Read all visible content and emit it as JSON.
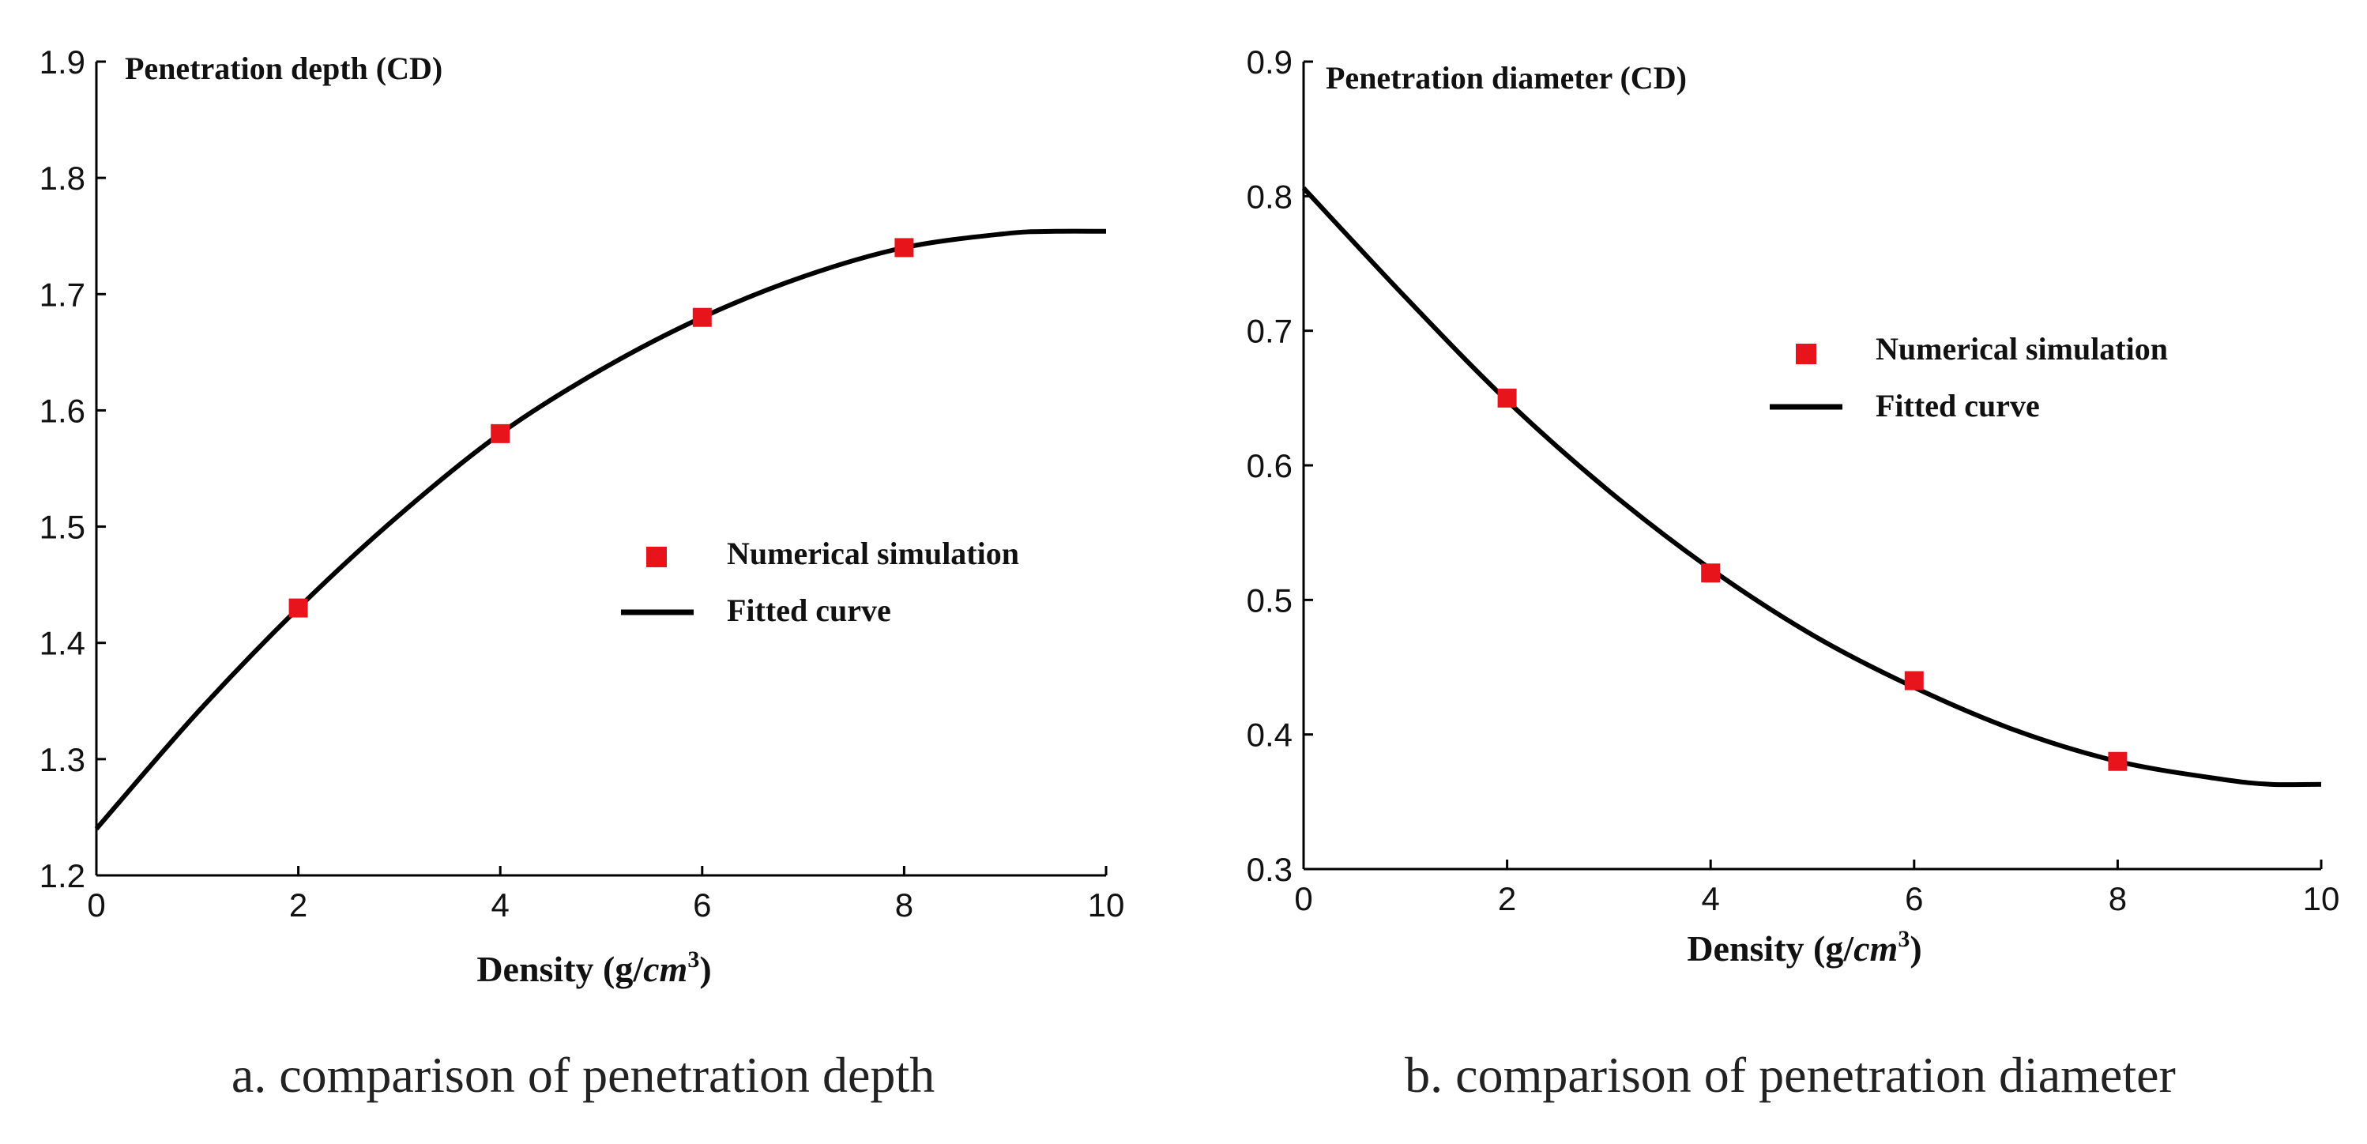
{
  "chart_data": [
    {
      "type": "scatter",
      "title": "Penetration depth (CD)",
      "xlabel": {
        "prefix": "Density (g/",
        "unit": "cm",
        "sup": "3",
        "suffix": ")"
      },
      "ylabel": "",
      "xlim": [
        0,
        10
      ],
      "ylim": [
        1.2,
        1.9
      ],
      "xticks": [
        "0",
        "2",
        "4",
        "6",
        "8",
        "10"
      ],
      "yticks": [
        "1.2",
        "1.3",
        "1.4",
        "1.5",
        "1.6",
        "1.7",
        "1.8",
        "1.9"
      ],
      "series": [
        {
          "name": "Numerical simulation",
          "kind": "markers",
          "color": "#e8141b",
          "x": [
            2,
            4,
            6,
            8
          ],
          "y": [
            1.43,
            1.58,
            1.68,
            1.74
          ]
        },
        {
          "name": "Fitted curve",
          "kind": "line",
          "color": "#000000",
          "x": [
            0,
            1,
            2,
            3,
            4,
            5,
            6,
            7,
            8,
            9,
            9.5,
            10
          ],
          "y": [
            1.24,
            1.34,
            1.43,
            1.51,
            1.58,
            1.635,
            1.68,
            1.715,
            1.74,
            1.752,
            1.754,
            1.754
          ]
        }
      ],
      "legend": {
        "position": "center-right",
        "items": [
          "Numerical simulation",
          "Fitted curve"
        ]
      },
      "caption": "a. comparison of penetration depth"
    },
    {
      "type": "scatter",
      "title": "Penetration diameter (CD)",
      "xlabel": {
        "prefix": "Density (g/",
        "unit": "cm",
        "sup": "3",
        "suffix": ")"
      },
      "ylabel": "",
      "xlim": [
        0,
        10
      ],
      "ylim": [
        0.3,
        0.9
      ],
      "xticks": [
        "0",
        "2",
        "4",
        "6",
        "8",
        "10"
      ],
      "yticks": [
        "0.3",
        "0.4",
        "0.5",
        "0.6",
        "0.7",
        "0.8",
        "0.9"
      ],
      "series": [
        {
          "name": "Numerical simulation",
          "kind": "markers",
          "color": "#e8141b",
          "x": [
            2,
            4,
            6,
            8
          ],
          "y": [
            0.65,
            0.52,
            0.44,
            0.38
          ]
        },
        {
          "name": "Fitted curve",
          "kind": "line",
          "color": "#000000",
          "x": [
            0,
            1,
            2,
            3,
            4,
            5,
            6,
            7,
            8,
            9,
            9.5,
            10
          ],
          "y": [
            0.806,
            0.725,
            0.648,
            0.581,
            0.523,
            0.474,
            0.435,
            0.403,
            0.38,
            0.367,
            0.363,
            0.363
          ]
        }
      ],
      "legend": {
        "position": "upper-right",
        "items": [
          "Numerical simulation",
          "Fitted curve"
        ]
      },
      "caption": "b. comparison of penetration diameter"
    }
  ]
}
